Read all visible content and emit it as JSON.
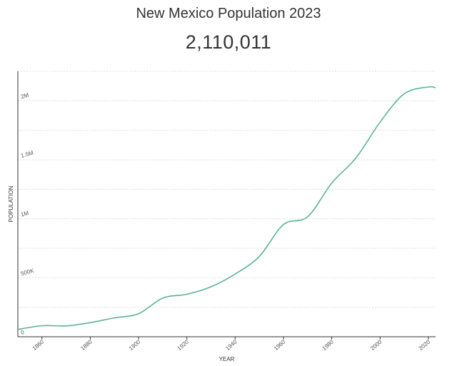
{
  "header": {
    "title": "New Mexico Population 2023",
    "value": "2,110,011"
  },
  "chart_data": {
    "type": "line",
    "title": "New Mexico Population 2023",
    "xlabel": "YEAR",
    "ylabel": "POPULATION",
    "xlim": [
      1850,
      2023
    ],
    "ylim": [
      0,
      2250000
    ],
    "x_ticks": [
      1860,
      1880,
      1900,
      1920,
      1940,
      1960,
      1980,
      2000,
      2020
    ],
    "x_tick_labels": [
      "1860",
      "1880",
      "1900",
      "1920",
      "1940",
      "1960",
      "1980",
      "2000",
      "2020"
    ],
    "y_ticks": [
      0,
      500000,
      1000000,
      1500000,
      2000000
    ],
    "y_tick_labels": [
      "0",
      "500K",
      "1M",
      "1.5M",
      "2M"
    ],
    "grid": true,
    "line_color": "#5bb397",
    "series": [
      {
        "x": [
          1850,
          1860,
          1870,
          1880,
          1890,
          1900,
          1910,
          1920,
          1930,
          1940,
          1950,
          1960,
          1970,
          1980,
          1990,
          2000,
          2010,
          2020,
          2023
        ],
        "values": [
          61547,
          93516,
          91874,
          119565,
          160282,
          195310,
          327301,
          360350,
          423317,
          531818,
          681187,
          951023,
          1017055,
          1302894,
          1515069,
          1819046,
          2059179,
          2117522,
          2110011
        ]
      }
    ]
  }
}
